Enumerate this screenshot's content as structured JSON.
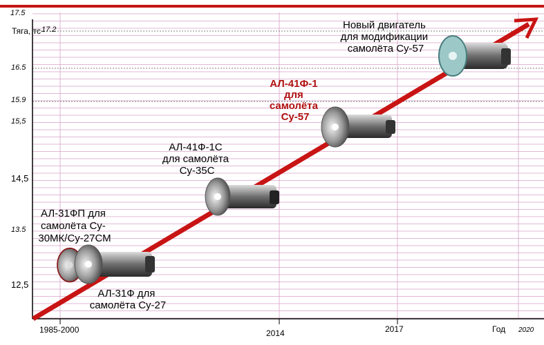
{
  "chart_data": {
    "type": "line",
    "xlabel": "Год",
    "ylabel": "Тяга, тс",
    "y_ticks": [
      "17.5",
      "17.2",
      "16.5",
      "15.9",
      "15,5",
      "14,5",
      "13.5",
      "12,5"
    ],
    "y_tick_values": [
      17.5,
      17.2,
      16.5,
      15.9,
      15.5,
      14.5,
      13.5,
      12.5
    ],
    "x_ticks": [
      "1985-2000",
      "2014",
      "2017",
      "2020"
    ],
    "ylim": [
      12,
      17.5
    ],
    "grid": true,
    "trend": {
      "from_y": 12,
      "to_y": 17.3
    },
    "engines": [
      {
        "lines": [
          "АЛ-31ФП для",
          "самолёта Су-",
          "30МК/Су-27СМ"
        ],
        "thrust": 12.7,
        "icon": "jet-engine-icon"
      },
      {
        "lines": [
          "АЛ-31Ф для",
          "самолёта  Су-27"
        ],
        "thrust": 12.8,
        "icon": "jet-engine-icon"
      },
      {
        "lines": [
          "АЛ-41Ф-1С",
          "для самолёта",
          "Су-35С"
        ],
        "thrust": 14.3,
        "icon": "jet-engine-icon"
      },
      {
        "lines": [
          "АЛ-41Ф-1",
          "для",
          "самолёта",
          "Су-57"
        ],
        "thrust": 15.6,
        "icon": "jet-engine-icon",
        "highlight": true
      },
      {
        "lines": [
          "Новый двигатель",
          "для модификации",
          "самолёта Су-57"
        ],
        "thrust": 16.8,
        "icon": "jet-engine-icon"
      }
    ],
    "colors": {
      "trend": "#c81414",
      "grid": "#d7a0c8",
      "axis": "#000000",
      "highlight": "#b01010"
    }
  }
}
